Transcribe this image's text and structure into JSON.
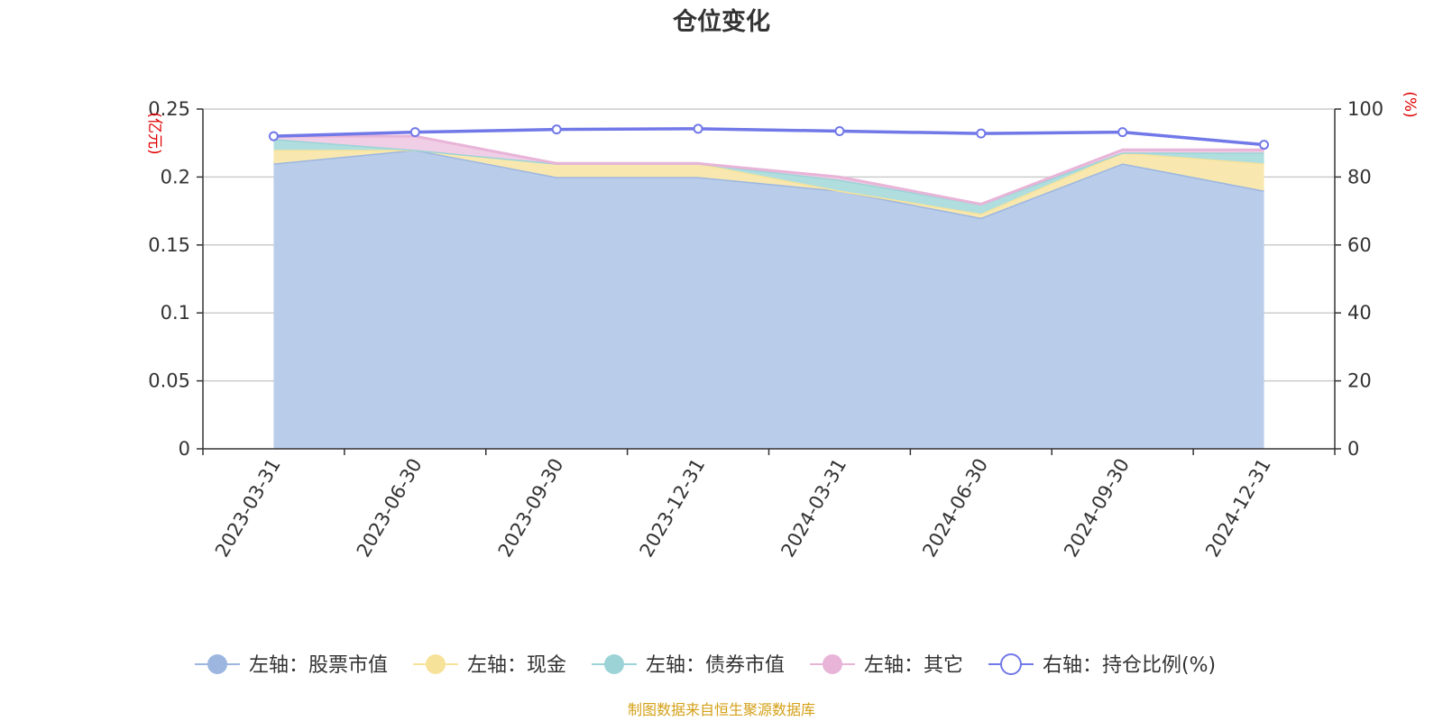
{
  "chart_data": {
    "type": "area",
    "title": "仓位变化",
    "categories": [
      "2023-03-31",
      "2023-06-30",
      "2023-09-30",
      "2023-12-31",
      "2024-03-31",
      "2024-06-30",
      "2024-09-30",
      "2024-12-31"
    ],
    "left_axis": {
      "unit": "(亿元)",
      "ylim": [
        0,
        0.25
      ],
      "ticks": [
        "0",
        "0.05",
        "0.1",
        "0.15",
        "0.2",
        "0.25"
      ]
    },
    "right_axis": {
      "unit": "(%)",
      "ylim": [
        0,
        100
      ],
      "ticks": [
        "0",
        "20",
        "40",
        "60",
        "80",
        "100"
      ]
    },
    "stacked_series": [
      {
        "name": "左轴：股票市值",
        "color": "#9db6e0",
        "fill": "#b9cdea",
        "values": [
          0.21,
          0.22,
          0.2,
          0.2,
          0.19,
          0.17,
          0.21,
          0.19
        ]
      },
      {
        "name": "左轴：现金",
        "color": "#f7e29a",
        "fill": "#f8e8b0",
        "values": [
          0.01,
          0.0,
          0.01,
          0.01,
          0.0,
          0.003,
          0.008,
          0.02
        ]
      },
      {
        "name": "左轴：债券市值",
        "color": "#9bd3d6",
        "fill": "#b0dedf",
        "values": [
          0.008,
          0.0,
          0.0,
          0.0,
          0.008,
          0.007,
          0.0,
          0.008
        ]
      },
      {
        "name": "左轴：其它",
        "color": "#e8b4d8",
        "fill": "#f0cfe6",
        "values": [
          0.002,
          0.01,
          0.0,
          0.0,
          0.002,
          0.0,
          0.002,
          0.002
        ]
      }
    ],
    "line_series": {
      "name": "右轴：持仓比例(%)",
      "color": "#7178e8",
      "values": [
        92,
        93.2,
        94,
        94.2,
        93.5,
        92.8,
        93.2,
        89.5
      ]
    },
    "grid": true,
    "legend_position": "bottom"
  },
  "source_note": "制图数据来自恒生聚源数据库"
}
